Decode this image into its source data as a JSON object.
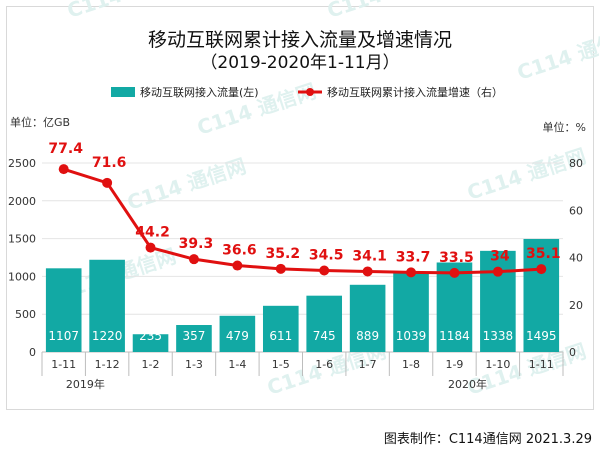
{
  "chart_data": {
    "type": "bar",
    "title": "移动互联网累计接入流量及增速情况",
    "subtitle": "（2019-2020年1-11月）",
    "categories": [
      "1-11",
      "1-12",
      "1-2",
      "1-3",
      "1-4",
      "1-5",
      "1-6",
      "1-7",
      "1-8",
      "1-9",
      "1-10",
      "1-11"
    ],
    "year_groups": [
      {
        "label": "2019年",
        "from": 0,
        "to": 1
      },
      {
        "label": "2020年",
        "from": 2,
        "to": 11
      }
    ],
    "series": [
      {
        "name": "移动互联网接入流量(左)",
        "type": "bar",
        "axis": "left",
        "color": "#12a9a4",
        "values": [
          1107,
          1220,
          235,
          357,
          479,
          611,
          745,
          889,
          1039,
          1184,
          1338,
          1495
        ],
        "labels": [
          "1107",
          "1220",
          "235",
          "357",
          "479",
          "611",
          "745",
          "889",
          "1039",
          "1184",
          "1338",
          "1495"
        ]
      },
      {
        "name": "移动互联网累计接入流量增速（右）",
        "type": "line",
        "axis": "right",
        "color": "#e01010",
        "values": [
          77.4,
          71.6,
          44.2,
          39.3,
          36.6,
          35.2,
          34.5,
          34.1,
          33.7,
          33.5,
          34,
          35.1
        ],
        "labels": [
          "77.4",
          "71.6",
          "44.2",
          "39.3",
          "36.6",
          "35.2",
          "34.5",
          "34.1",
          "33.7",
          "33.5",
          "34",
          "35.1"
        ]
      }
    ],
    "y_left": {
      "unit_label": "单位：亿GB",
      "min": 0,
      "max": 2500,
      "ticks": [
        0,
        500,
        1000,
        1500,
        2000,
        2500
      ]
    },
    "y_right": {
      "unit_label": "单位：%",
      "min": 0,
      "max": 80,
      "ticks": [
        0,
        20,
        40,
        60,
        80
      ]
    },
    "legend_position": "top",
    "grid": true
  },
  "credit": "图表制作：C114通信网  2021.3.29",
  "watermark": "C114 通信网"
}
